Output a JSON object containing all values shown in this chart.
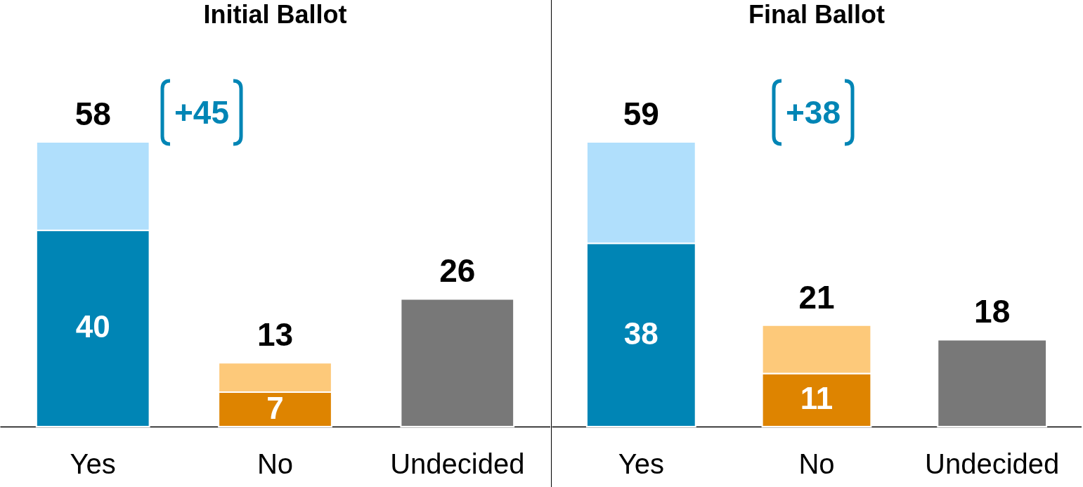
{
  "chart_data": [
    {
      "type": "bar",
      "stacked": true,
      "title": "Initial Ballot",
      "categories": [
        "Yes",
        "No",
        "Undecided"
      ],
      "series": [
        {
          "colors": [
            "#0085b5",
            "#de8400",
            "#787878"
          ],
          "values": [
            40,
            7,
            26
          ],
          "value_labels": [
            "40",
            "7",
            null
          ]
        },
        {
          "colors": [
            "#b0dffc",
            "#fdc97a",
            null
          ],
          "values": [
            18,
            6,
            null
          ]
        }
      ],
      "totals": [
        "58",
        "13",
        "26"
      ],
      "annotations": [
        "+45"
      ]
    },
    {
      "type": "bar",
      "stacked": true,
      "title": "Final Ballot",
      "categories": [
        "Yes",
        "No",
        "Undecided"
      ],
      "series": [
        {
          "colors": [
            "#0085b5",
            "#de8400",
            "#787878"
          ],
          "values": [
            38,
            11,
            18
          ],
          "value_labels": [
            "38",
            "11",
            null
          ]
        },
        {
          "colors": [
            "#b0dffc",
            "#fdc97a",
            null
          ],
          "values": [
            21,
            10,
            null
          ]
        }
      ],
      "totals": [
        "59",
        "21",
        "18"
      ],
      "annotations": [
        "+38"
      ]
    }
  ]
}
